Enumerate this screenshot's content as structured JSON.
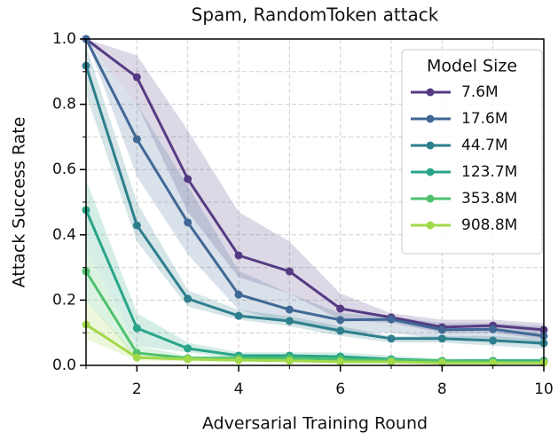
{
  "chart_data": {
    "type": "line",
    "title": "Spam, RandomToken attack",
    "xlabel": "Adversarial Training Round",
    "ylabel": "Attack Success Rate",
    "x": [
      1,
      2,
      3,
      4,
      5,
      6,
      7,
      8,
      9,
      10
    ],
    "xlim": [
      1,
      10
    ],
    "xticks": [
      2,
      4,
      6,
      8,
      10
    ],
    "xminorticks": [
      1,
      3,
      5,
      7,
      9
    ],
    "ylim": [
      0,
      1
    ],
    "yticks": [
      {
        "value": 0,
        "label": "0.0"
      },
      0.2,
      0.4,
      0.6,
      0.8,
      {
        "value": 1,
        "label": "1.0"
      }
    ],
    "yminorticks": [
      0.1,
      0.3,
      0.5,
      0.7,
      0.9
    ],
    "grid": true,
    "legend": "upper right",
    "legend_title": "Model Size",
    "series": [
      {
        "name": "7.6M",
        "color": "#553b83",
        "values": [
          1.0,
          0.883,
          0.571,
          0.337,
          0.288,
          0.174,
          0.147,
          0.117,
          0.122,
          0.109
        ],
        "band_high": [
          1.0,
          0.95,
          0.72,
          0.47,
          0.38,
          0.22,
          0.16,
          0.14,
          0.14,
          0.13
        ],
        "band_low": [
          1.0,
          0.8,
          0.47,
          0.27,
          0.22,
          0.14,
          0.13,
          0.1,
          0.1,
          0.08
        ]
      },
      {
        "name": "17.6M",
        "color": "#406896",
        "values": [
          1.0,
          0.693,
          0.438,
          0.217,
          0.171,
          0.139,
          0.141,
          0.109,
          0.111,
          0.09
        ],
        "band_high": [
          1.0,
          0.8,
          0.55,
          0.29,
          0.22,
          0.16,
          0.15,
          0.13,
          0.13,
          0.12
        ],
        "band_low": [
          1.0,
          0.58,
          0.34,
          0.17,
          0.13,
          0.1,
          0.1,
          0.08,
          0.08,
          0.06
        ]
      },
      {
        "name": "44.7M",
        "color": "#2e7f8d",
        "values": [
          0.918,
          0.429,
          0.204,
          0.152,
          0.136,
          0.106,
          0.082,
          0.082,
          0.076,
          0.068
        ],
        "band_high": [
          0.98,
          0.5,
          0.23,
          0.17,
          0.15,
          0.12,
          0.09,
          0.09,
          0.09,
          0.08
        ],
        "band_low": [
          0.83,
          0.38,
          0.18,
          0.14,
          0.12,
          0.09,
          0.07,
          0.07,
          0.06,
          0.05
        ]
      },
      {
        "name": "123.7M",
        "color": "#29a489",
        "values": [
          0.476,
          0.114,
          0.052,
          0.03,
          0.03,
          0.027,
          0.019,
          0.014,
          0.014,
          0.014
        ],
        "band_high": [
          0.57,
          0.16,
          0.07,
          0.04,
          0.04,
          0.04,
          0.03,
          0.02,
          0.02,
          0.02
        ],
        "band_low": [
          0.36,
          0.06,
          0.04,
          0.02,
          0.02,
          0.02,
          0.01,
          0.01,
          0.01,
          0.01
        ]
      },
      {
        "name": "353.8M",
        "color": "#4fc16e",
        "values": [
          0.288,
          0.038,
          0.022,
          0.022,
          0.022,
          0.019,
          0.016,
          0.014,
          0.011,
          0.011
        ],
        "band_high": [
          0.36,
          0.06,
          0.03,
          0.03,
          0.03,
          0.03,
          0.02,
          0.02,
          0.02,
          0.02
        ],
        "band_low": [
          0.2,
          0.02,
          0.015,
          0.015,
          0.015,
          0.01,
          0.01,
          0.01,
          0.005,
          0.005
        ]
      },
      {
        "name": "908.8M",
        "color": "#a2d94a",
        "values": [
          0.125,
          0.024,
          0.019,
          0.016,
          0.014,
          0.011,
          0.011,
          0.008,
          0.008,
          0.008
        ],
        "band_high": [
          0.2,
          0.03,
          0.025,
          0.02,
          0.02,
          0.015,
          0.015,
          0.012,
          0.012,
          0.012
        ],
        "band_low": [
          0.08,
          0.015,
          0.012,
          0.01,
          0.01,
          0.008,
          0.008,
          0.005,
          0.005,
          0.005
        ]
      }
    ]
  }
}
